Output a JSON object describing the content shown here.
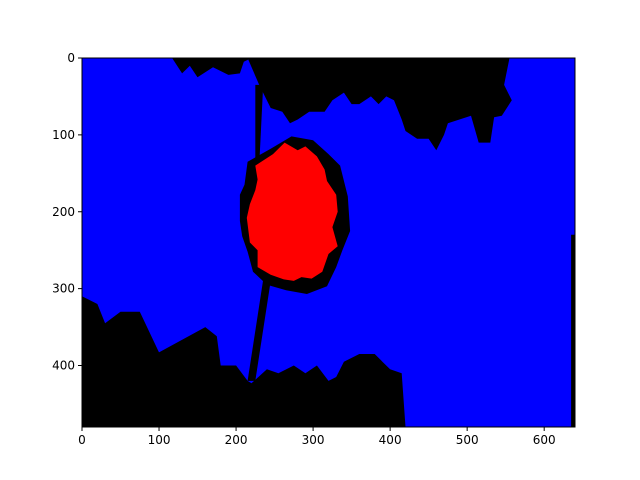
{
  "chart_data": {
    "type": "heatmap",
    "title": "",
    "xlabel": "",
    "ylabel": "",
    "xlim": [
      0,
      640
    ],
    "ylim": [
      480,
      0
    ],
    "y_inverted": true,
    "grid": false,
    "x_ticks": [
      0,
      100,
      200,
      300,
      400,
      500,
      600
    ],
    "y_ticks": [
      0,
      100,
      200,
      300,
      400
    ],
    "x_tick_labels": [
      "0",
      "100",
      "200",
      "300",
      "400",
      "500",
      "600"
    ],
    "y_tick_labels": [
      "0",
      "100",
      "200",
      "300",
      "400"
    ],
    "colors": {
      "background_region": "#0000ff",
      "boundary": "#000000",
      "target": "#ff0000"
    },
    "regions": [
      {
        "class": "background_region",
        "points": [
          [
            0,
            0
          ],
          [
            640,
            0
          ],
          [
            640,
            480
          ],
          [
            0,
            480
          ]
        ]
      },
      {
        "class": "boundary",
        "points": [
          [
            117,
            0
          ],
          [
            130,
            20
          ],
          [
            140,
            10
          ],
          [
            150,
            25
          ],
          [
            170,
            12
          ],
          [
            190,
            22
          ],
          [
            205,
            20
          ],
          [
            210,
            5
          ],
          [
            220,
            0
          ]
        ]
      },
      {
        "class": "boundary",
        "points": [
          [
            215,
            0
          ],
          [
            555,
            0
          ],
          [
            548,
            35
          ],
          [
            558,
            55
          ],
          [
            545,
            75
          ],
          [
            535,
            77
          ],
          [
            530,
            110
          ],
          [
            515,
            110
          ],
          [
            505,
            75
          ],
          [
            475,
            85
          ],
          [
            470,
            100
          ],
          [
            460,
            120
          ],
          [
            450,
            105
          ],
          [
            435,
            105
          ],
          [
            420,
            95
          ],
          [
            415,
            80
          ],
          [
            405,
            55
          ],
          [
            395,
            50
          ],
          [
            385,
            60
          ],
          [
            375,
            50
          ],
          [
            360,
            60
          ],
          [
            350,
            60
          ],
          [
            340,
            45
          ],
          [
            325,
            55
          ],
          [
            315,
            70
          ],
          [
            295,
            70
          ],
          [
            280,
            80
          ],
          [
            270,
            85
          ],
          [
            260,
            70
          ],
          [
            245,
            65
          ],
          [
            230,
            35
          ]
        ]
      },
      {
        "class": "boundary",
        "points": [
          [
            0,
            310
          ],
          [
            20,
            320
          ],
          [
            30,
            345
          ],
          [
            50,
            330
          ],
          [
            75,
            330
          ],
          [
            100,
            383
          ],
          [
            160,
            350
          ],
          [
            175,
            362
          ],
          [
            180,
            400
          ],
          [
            200,
            400
          ],
          [
            215,
            420
          ],
          [
            220,
            423
          ],
          [
            240,
            405
          ],
          [
            255,
            410
          ],
          [
            275,
            400
          ],
          [
            290,
            410
          ],
          [
            305,
            400
          ],
          [
            320,
            420
          ],
          [
            330,
            415
          ],
          [
            340,
            395
          ],
          [
            360,
            385
          ],
          [
            380,
            385
          ],
          [
            390,
            395
          ],
          [
            400,
            405
          ],
          [
            415,
            410
          ],
          [
            420,
            480
          ],
          [
            0,
            480
          ]
        ]
      },
      {
        "class": "boundary",
        "points": [
          [
            635,
            230
          ],
          [
            640,
            230
          ],
          [
            640,
            480
          ],
          [
            635,
            480
          ]
        ]
      },
      {
        "class": "boundary",
        "points": [
          [
            225,
            35
          ],
          [
            230,
            35
          ],
          [
            235,
            40
          ],
          [
            230,
            140
          ],
          [
            225,
            140
          ]
        ]
      },
      {
        "class": "boundary",
        "points": [
          [
            235,
            290
          ],
          [
            245,
            290
          ],
          [
            225,
            420
          ],
          [
            215,
            420
          ]
        ]
      },
      {
        "class": "boundary",
        "points": [
          [
            215,
            135
          ],
          [
            245,
            118
          ],
          [
            272,
            102
          ],
          [
            300,
            107
          ],
          [
            320,
            125
          ],
          [
            335,
            140
          ],
          [
            345,
            180
          ],
          [
            348,
            225
          ],
          [
            338,
            250
          ],
          [
            330,
            272
          ],
          [
            318,
            297
          ],
          [
            292,
            307
          ],
          [
            265,
            302
          ],
          [
            240,
            295
          ],
          [
            222,
            278
          ],
          [
            215,
            252
          ],
          [
            208,
            232
          ],
          [
            205,
            212
          ],
          [
            205,
            178
          ],
          [
            211,
            165
          ]
        ]
      },
      {
        "class": "target",
        "points": [
          [
            225,
            140
          ],
          [
            248,
            125
          ],
          [
            263,
            110
          ],
          [
            280,
            120
          ],
          [
            290,
            115
          ],
          [
            305,
            128
          ],
          [
            315,
            145
          ],
          [
            318,
            160
          ],
          [
            330,
            178
          ],
          [
            332,
            200
          ],
          [
            325,
            220
          ],
          [
            332,
            245
          ],
          [
            320,
            255
          ],
          [
            312,
            278
          ],
          [
            298,
            287
          ],
          [
            285,
            285
          ],
          [
            275,
            290
          ],
          [
            262,
            288
          ],
          [
            245,
            282
          ],
          [
            228,
            272
          ],
          [
            228,
            250
          ],
          [
            218,
            240
          ],
          [
            214,
            208
          ],
          [
            218,
            190
          ],
          [
            225,
            172
          ],
          [
            228,
            158
          ]
        ]
      }
    ]
  }
}
